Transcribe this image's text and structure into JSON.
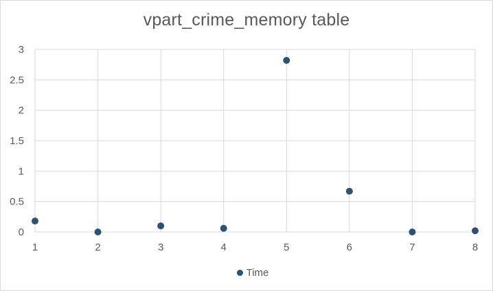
{
  "chart_data": {
    "type": "scatter",
    "title": "vpart_crime_memory table",
    "xlabel": "",
    "ylabel": "",
    "xlim": [
      1,
      8
    ],
    "ylim": [
      0,
      3
    ],
    "x_ticks": [
      "1",
      "2",
      "3",
      "4",
      "5",
      "6",
      "7",
      "8"
    ],
    "y_ticks": [
      "0",
      "0.5",
      "1",
      "1.5",
      "2",
      "2.5",
      "3"
    ],
    "grid": true,
    "legend": "bottom",
    "series": [
      {
        "name": "Time",
        "color": "#2e5073",
        "x": [
          1,
          2,
          3,
          4,
          5,
          6,
          7,
          8
        ],
        "y": [
          0.18,
          0.0,
          0.1,
          0.06,
          2.82,
          0.67,
          0.0,
          0.02
        ]
      }
    ]
  }
}
